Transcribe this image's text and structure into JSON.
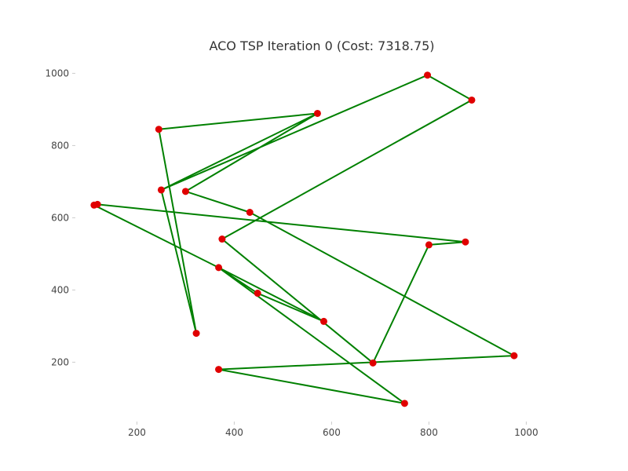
{
  "chart_data": {
    "type": "line",
    "title": "ACO TSP Iteration 0 (Cost: 7318.75)",
    "xlabel": "",
    "ylabel": "",
    "xlim": [
      80,
      1080
    ],
    "ylim": [
      40,
      1040
    ],
    "xticks": [
      200,
      400,
      600,
      800,
      1000
    ],
    "yticks": [
      200,
      400,
      600,
      800,
      1000
    ],
    "grid": false,
    "colors": {
      "route": "#008000",
      "city": "#e00000"
    },
    "series": [
      {
        "points": [
          {
            "x": 112,
            "y": 635
          },
          {
            "x": 368,
            "y": 462
          },
          {
            "x": 584,
            "y": 313
          },
          {
            "x": 448,
            "y": 391
          },
          {
            "x": 368,
            "y": 462
          },
          {
            "x": 750,
            "y": 86
          },
          {
            "x": 368,
            "y": 180
          },
          {
            "x": 975,
            "y": 218
          },
          {
            "x": 432,
            "y": 615
          },
          {
            "x": 300,
            "y": 673
          },
          {
            "x": 571,
            "y": 889
          },
          {
            "x": 250,
            "y": 677
          },
          {
            "x": 797,
            "y": 995
          },
          {
            "x": 888,
            "y": 926
          },
          {
            "x": 375,
            "y": 541
          },
          {
            "x": 685,
            "y": 198
          },
          {
            "x": 800,
            "y": 525
          },
          {
            "x": 875,
            "y": 533
          },
          {
            "x": 119,
            "y": 637
          },
          {
            "x": 112,
            "y": 635
          }
        ]
      },
      {
        "points": [
          {
            "x": 245,
            "y": 845
          },
          {
            "x": 571,
            "y": 889
          },
          {
            "x": 245,
            "y": 845
          },
          {
            "x": 322,
            "y": 280
          },
          {
            "x": 250,
            "y": 677
          }
        ]
      }
    ],
    "cities": [
      {
        "x": 112,
        "y": 635
      },
      {
        "x": 119,
        "y": 637
      },
      {
        "x": 245,
        "y": 845
      },
      {
        "x": 250,
        "y": 677
      },
      {
        "x": 300,
        "y": 673
      },
      {
        "x": 322,
        "y": 280
      },
      {
        "x": 368,
        "y": 462
      },
      {
        "x": 368,
        "y": 180
      },
      {
        "x": 375,
        "y": 541
      },
      {
        "x": 432,
        "y": 615
      },
      {
        "x": 448,
        "y": 391
      },
      {
        "x": 571,
        "y": 889
      },
      {
        "x": 584,
        "y": 313
      },
      {
        "x": 685,
        "y": 198
      },
      {
        "x": 750,
        "y": 86
      },
      {
        "x": 797,
        "y": 995
      },
      {
        "x": 800,
        "y": 525
      },
      {
        "x": 875,
        "y": 533
      },
      {
        "x": 888,
        "y": 926
      },
      {
        "x": 975,
        "y": 218
      }
    ]
  }
}
